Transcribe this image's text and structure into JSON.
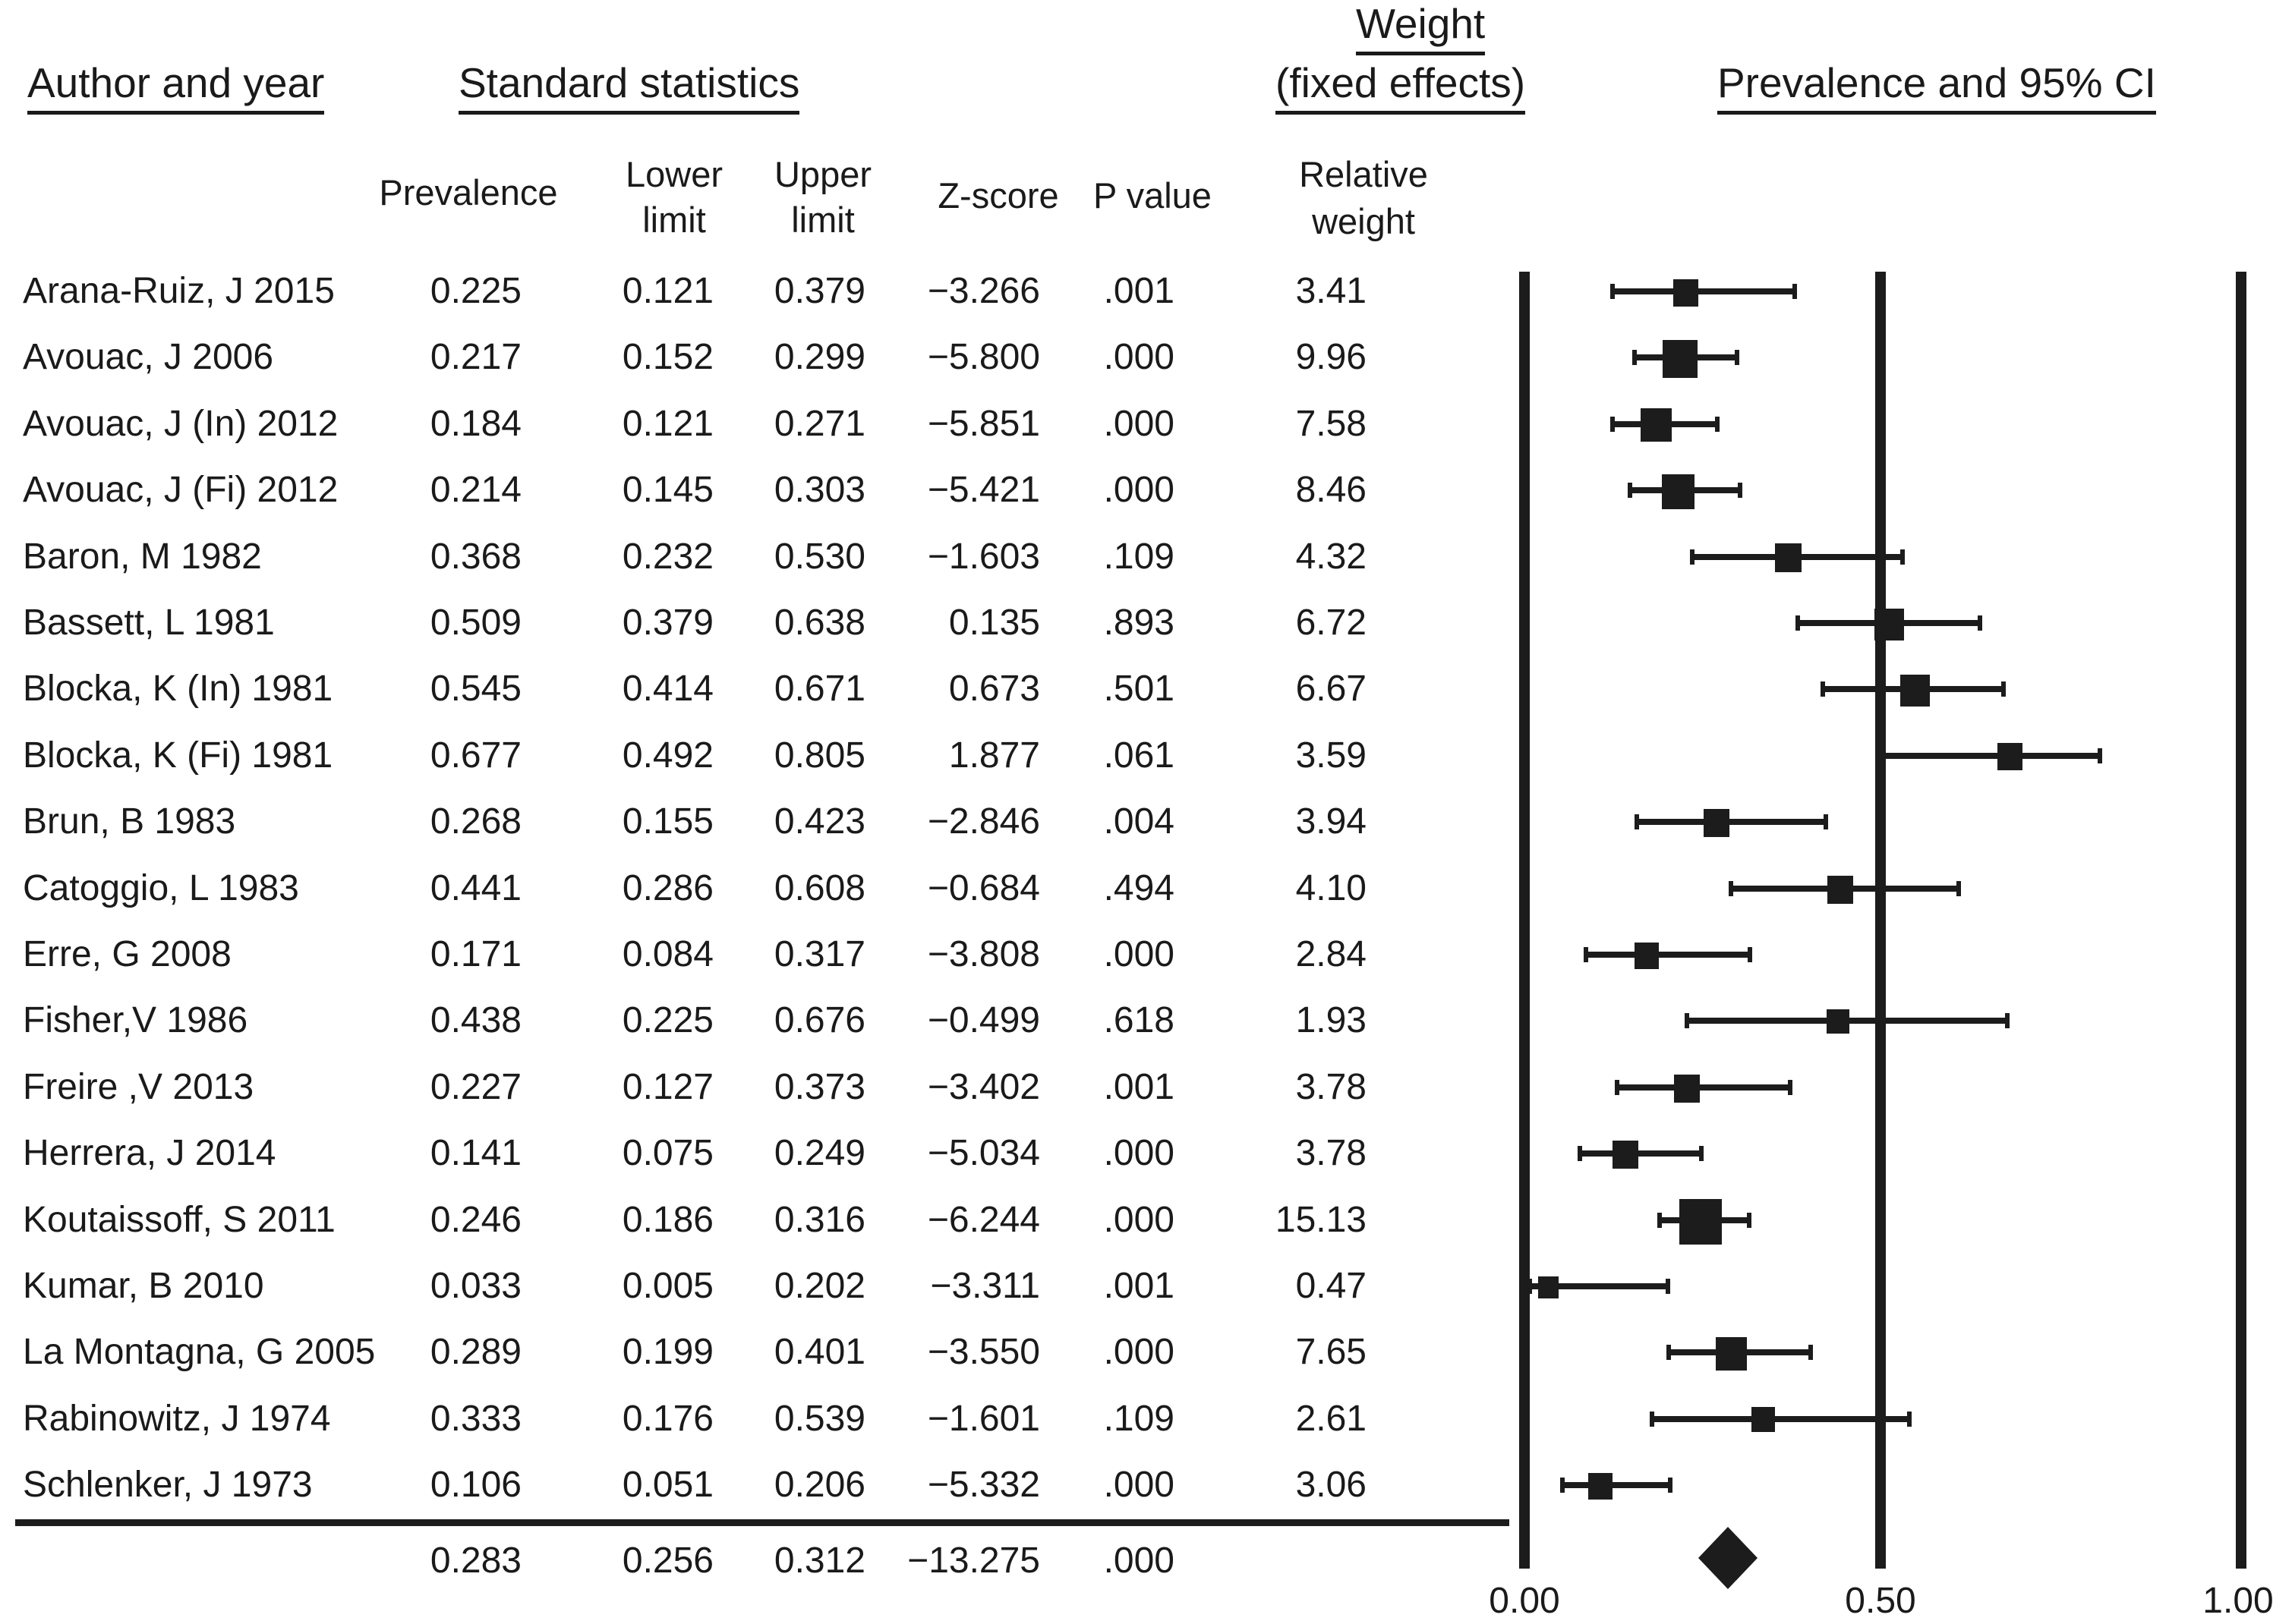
{
  "header": {
    "author": "Author and year",
    "stats": "Standard statistics",
    "weight_line1": "Weight",
    "weight_line2": "(fixed effects)",
    "plot": "Prevalence and 95% CI"
  },
  "subheader": {
    "prevalence": "Prevalence",
    "lower_line1": "Lower",
    "lower_line2": "limit",
    "upper_line1": "Upper",
    "upper_line2": "limit",
    "zscore": "Z-score",
    "pvalue": "P value",
    "relweight_line1": "Relative",
    "relweight_line2": "weight"
  },
  "chart_data": {
    "type": "forest",
    "x_ticks": [
      "0.00",
      "0.50",
      "1.00"
    ],
    "x_range": [
      0.0,
      1.0
    ],
    "plot_title": "Prevalence and 95% CI",
    "studies": [
      {
        "author": "Arana-Ruiz, J 2015",
        "prevalence": "0.225",
        "lower": "0.121",
        "upper": "0.379",
        "z": "−3.266",
        "p": ".001",
        "weight": "3.41"
      },
      {
        "author": "Avouac, J 2006",
        "prevalence": "0.217",
        "lower": "0.152",
        "upper": "0.299",
        "z": "−5.800",
        "p": ".000",
        "weight": "9.96"
      },
      {
        "author": "Avouac, J (In) 2012",
        "prevalence": "0.184",
        "lower": "0.121",
        "upper": "0.271",
        "z": "−5.851",
        "p": ".000",
        "weight": "7.58"
      },
      {
        "author": "Avouac, J (Fi) 2012",
        "prevalence": "0.214",
        "lower": "0.145",
        "upper": "0.303",
        "z": "−5.421",
        "p": ".000",
        "weight": "8.46"
      },
      {
        "author": "Baron, M 1982",
        "prevalence": "0.368",
        "lower": "0.232",
        "upper": "0.530",
        "z": "−1.603",
        "p": ".109",
        "weight": "4.32"
      },
      {
        "author": "Bassett, L 1981",
        "prevalence": "0.509",
        "lower": "0.379",
        "upper": "0.638",
        "z": "0.135",
        "p": ".893",
        "weight": "6.72"
      },
      {
        "author": "Blocka, K (In) 1981",
        "prevalence": "0.545",
        "lower": "0.414",
        "upper": "0.671",
        "z": "0.673",
        "p": ".501",
        "weight": "6.67"
      },
      {
        "author": "Blocka, K (Fi) 1981",
        "prevalence": "0.677",
        "lower": "0.492",
        "upper": "0.805",
        "z": "1.877",
        "p": ".061",
        "weight": "3.59"
      },
      {
        "author": "Brun, B 1983",
        "prevalence": "0.268",
        "lower": "0.155",
        "upper": "0.423",
        "z": "−2.846",
        "p": ".004",
        "weight": "3.94"
      },
      {
        "author": "Catoggio, L 1983",
        "prevalence": "0.441",
        "lower": "0.286",
        "upper": "0.608",
        "z": "−0.684",
        "p": ".494",
        "weight": "4.10"
      },
      {
        "author": "Erre, G 2008",
        "prevalence": "0.171",
        "lower": "0.084",
        "upper": "0.317",
        "z": "−3.808",
        "p": ".000",
        "weight": "2.84"
      },
      {
        "author": "Fisher,V 1986",
        "prevalence": "0.438",
        "lower": "0.225",
        "upper": "0.676",
        "z": "−0.499",
        "p": ".618",
        "weight": "1.93"
      },
      {
        "author": "Freire ,V 2013",
        "prevalence": "0.227",
        "lower": "0.127",
        "upper": "0.373",
        "z": "−3.402",
        "p": ".001",
        "weight": "3.78"
      },
      {
        "author": "Herrera, J 2014",
        "prevalence": "0.141",
        "lower": "0.075",
        "upper": "0.249",
        "z": "−5.034",
        "p": ".000",
        "weight": "3.78"
      },
      {
        "author": "Koutaissoff, S 2011",
        "prevalence": "0.246",
        "lower": "0.186",
        "upper": "0.316",
        "z": "−6.244",
        "p": ".000",
        "weight": "15.13"
      },
      {
        "author": "Kumar, B 2010",
        "prevalence": "0.033",
        "lower": "0.005",
        "upper": "0.202",
        "z": "−3.311",
        "p": ".001",
        "weight": "0.47"
      },
      {
        "author": "La Montagna, G 2005",
        "prevalence": "0.289",
        "lower": "0.199",
        "upper": "0.401",
        "z": "−3.550",
        "p": ".000",
        "weight": "7.65"
      },
      {
        "author": "Rabinowitz, J 1974",
        "prevalence": "0.333",
        "lower": "0.176",
        "upper": "0.539",
        "z": "−1.601",
        "p": ".109",
        "weight": "2.61"
      },
      {
        "author": "Schlenker, J 1973",
        "prevalence": "0.106",
        "lower": "0.051",
        "upper": "0.206",
        "z": "−5.332",
        "p": ".000",
        "weight": "3.06"
      }
    ],
    "summary": {
      "prevalence": "0.283",
      "lower": "0.256",
      "upper": "0.312",
      "z": "−13.275",
      "p": ".000"
    }
  }
}
